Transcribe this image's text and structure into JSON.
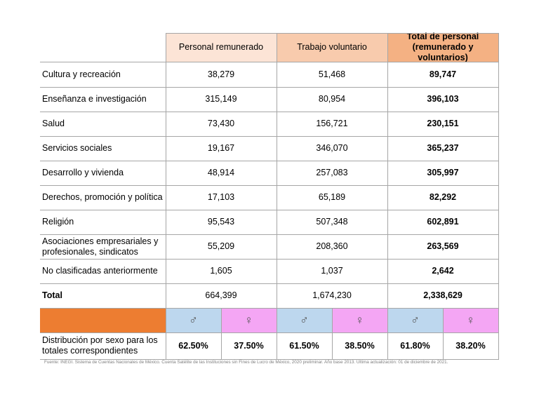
{
  "table": {
    "headers": [
      [
        "Personal remunerado"
      ],
      [
        "Trabajo voluntario"
      ],
      [
        "Total de personal",
        "(remunerado y voluntarios)"
      ]
    ],
    "rows": [
      [
        "Cultura y recreación",
        "38,279",
        "51,468",
        "89,747"
      ],
      [
        "Enseñanza e investigación",
        "315,149",
        "80,954",
        "396,103"
      ],
      [
        "Salud",
        "73,430",
        "156,721",
        "230,151"
      ],
      [
        "Servicios sociales",
        "19,167",
        "346,070",
        "365,237"
      ],
      [
        "Desarrollo y vivienda",
        "48,914",
        "257,083",
        "305,997"
      ],
      [
        "Derechos, promoción y política",
        "17,103",
        "65,189",
        "82,292"
      ],
      [
        "Religión",
        "95,543",
        "507,348",
        "602,891"
      ],
      [
        "Asociaciones empresariales y profesionales, sindicatos",
        "55,209",
        "208,360",
        "263,569"
      ],
      [
        "No clasificadas anteriormente",
        "1,605",
        "1,037",
        "2,642"
      ],
      [
        "Total",
        "664,399",
        "1,674,230",
        "2,338,629"
      ]
    ],
    "sex_symbols": [
      "♂",
      "♀",
      "♂",
      "♀",
      "♂",
      "♀"
    ],
    "distribution": {
      "label": "Distribución por sexo para los totales correspondientes",
      "values": [
        "62.50%",
        "37.50%",
        "61.50%",
        "38.50%",
        "61.80%",
        "38.20%"
      ]
    }
  },
  "footnote": "Fuente: INEGI. Sistema de Cuentas Nacionales de México. Cuenta Satélite de las Instituciones sin Fines de Lucro de México, 2020 preliminar. Año base 2013.  Última actualización: 01 de diciembre de 2021."
}
